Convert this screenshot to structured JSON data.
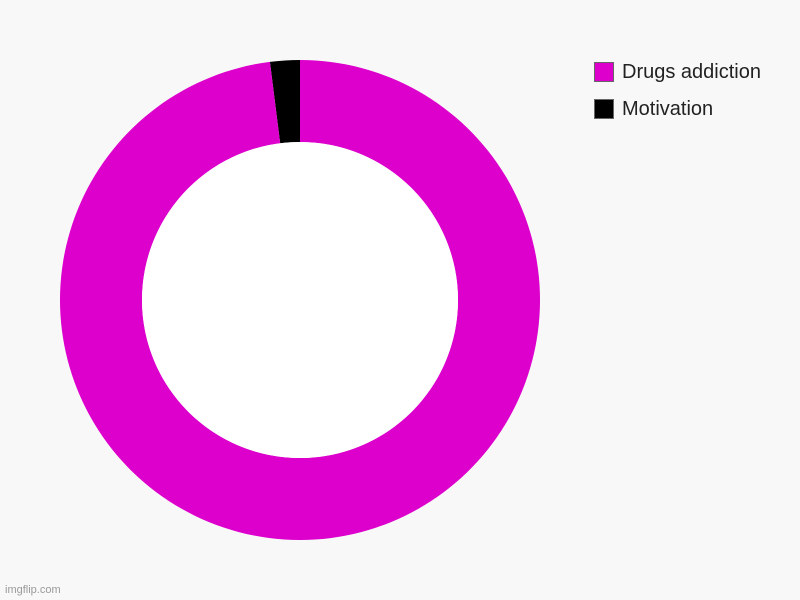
{
  "chart_data": {
    "type": "pie",
    "variant": "donut",
    "categories": [
      "Motivation",
      "Drugs addiction"
    ],
    "values": [
      2,
      98
    ],
    "colors": [
      "#000000",
      "#dd00cc"
    ],
    "legend_position": "top-right",
    "legend_order": [
      1,
      0
    ]
  },
  "watermark": "imgflip.com"
}
